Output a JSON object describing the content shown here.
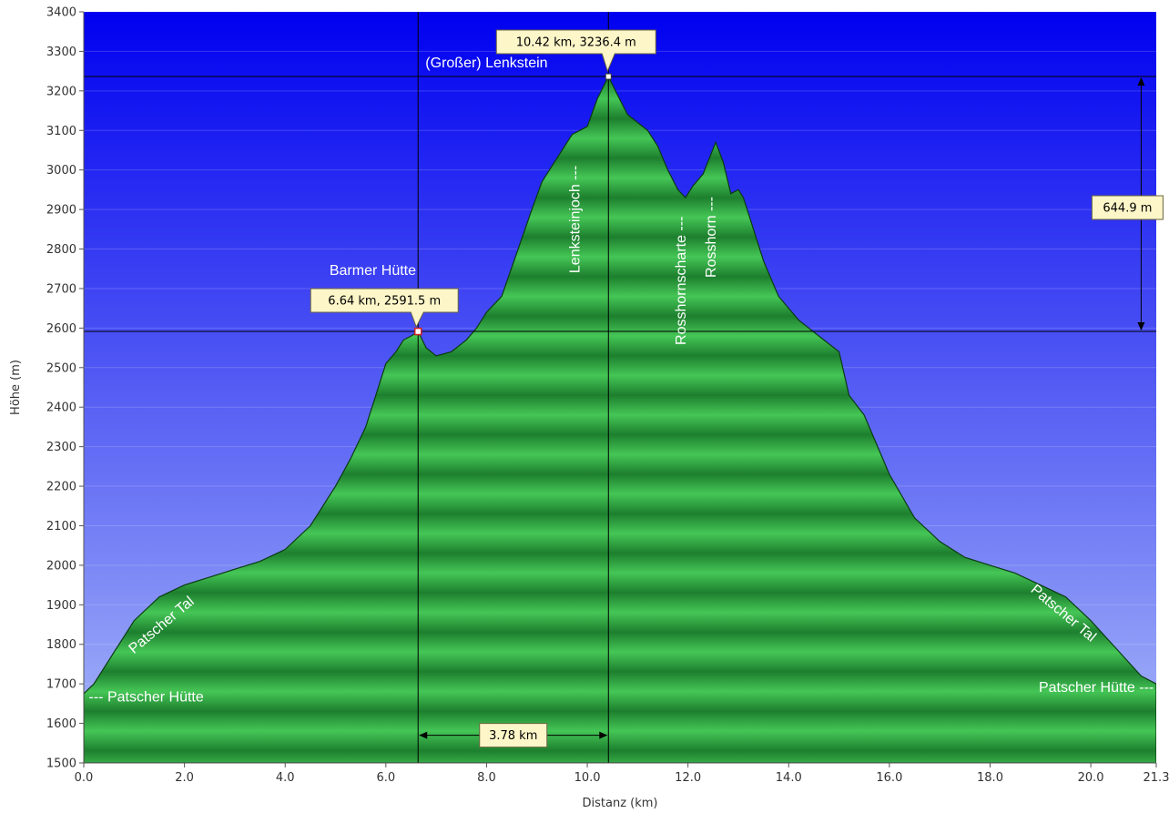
{
  "chart_data": {
    "type": "area",
    "xlabel": "Distanz  (km)",
    "ylabel": "Höhe (m)",
    "xlim": [
      0,
      21.3
    ],
    "ylim": [
      1500,
      3400
    ],
    "x_ticks": [
      {
        "value": 0,
        "label": "0.0"
      },
      {
        "value": 2,
        "label": "2.0"
      },
      {
        "value": 4,
        "label": "4.0"
      },
      {
        "value": 6,
        "label": "6.0"
      },
      {
        "value": 8,
        "label": "8.0"
      },
      {
        "value": 10,
        "label": "10.0"
      },
      {
        "value": 12,
        "label": "12.0"
      },
      {
        "value": 14,
        "label": "14.0"
      },
      {
        "value": 16,
        "label": "16.0"
      },
      {
        "value": 18,
        "label": "18.0"
      },
      {
        "value": 20,
        "label": "20.0"
      },
      {
        "value": 21.3,
        "label": "21.3"
      }
    ],
    "y_ticks": [
      {
        "value": 1500,
        "label": "1500"
      },
      {
        "value": 1600,
        "label": "1600"
      },
      {
        "value": 1700,
        "label": "1700"
      },
      {
        "value": 1800,
        "label": "1800"
      },
      {
        "value": 1900,
        "label": "1900"
      },
      {
        "value": 2000,
        "label": "2000"
      },
      {
        "value": 2100,
        "label": "2100"
      },
      {
        "value": 2200,
        "label": "2200"
      },
      {
        "value": 2300,
        "label": "2300"
      },
      {
        "value": 2400,
        "label": "2400"
      },
      {
        "value": 2500,
        "label": "2500"
      },
      {
        "value": 2600,
        "label": "2600"
      },
      {
        "value": 2700,
        "label": "2700"
      },
      {
        "value": 2800,
        "label": "2800"
      },
      {
        "value": 2900,
        "label": "2900"
      },
      {
        "value": 3000,
        "label": "3000"
      },
      {
        "value": 3100,
        "label": "3100"
      },
      {
        "value": 3200,
        "label": "3200"
      },
      {
        "value": 3300,
        "label": "3300"
      },
      {
        "value": 3400,
        "label": "3400"
      }
    ],
    "profile": {
      "x": [
        0.0,
        0.2,
        0.5,
        1.0,
        1.5,
        2.0,
        2.5,
        3.0,
        3.5,
        4.0,
        4.5,
        5.0,
        5.3,
        5.6,
        5.8,
        6.0,
        6.2,
        6.35,
        6.5,
        6.64,
        6.8,
        7.0,
        7.3,
        7.6,
        7.8,
        8.0,
        8.3,
        8.6,
        8.9,
        9.1,
        9.3,
        9.5,
        9.7,
        10.0,
        10.2,
        10.42,
        10.6,
        10.8,
        11.0,
        11.2,
        11.4,
        11.6,
        11.8,
        11.95,
        12.1,
        12.3,
        12.55,
        12.7,
        12.85,
        13.0,
        13.1,
        13.3,
        13.5,
        13.8,
        14.2,
        14.6,
        15.0,
        15.2,
        15.5,
        16.0,
        16.5,
        17.0,
        17.5,
        18.0,
        18.5,
        19.0,
        19.5,
        20.0,
        20.5,
        21.0,
        21.3
      ],
      "y": [
        1675,
        1700,
        1760,
        1860,
        1920,
        1950,
        1970,
        1990,
        2010,
        2040,
        2100,
        2200,
        2270,
        2350,
        2430,
        2510,
        2540,
        2570,
        2580,
        2591.5,
        2550,
        2530,
        2540,
        2570,
        2600,
        2640,
        2680,
        2790,
        2900,
        2970,
        3010,
        3050,
        3090,
        3110,
        3180,
        3236.4,
        3190,
        3140,
        3120,
        3100,
        3060,
        3000,
        2950,
        2930,
        2960,
        2990,
        3070,
        3020,
        2940,
        2950,
        2930,
        2850,
        2770,
        2680,
        2620,
        2580,
        2540,
        2430,
        2380,
        2230,
        2120,
        2060,
        2020,
        2000,
        1980,
        1950,
        1920,
        1860,
        1790,
        1720,
        1700
      ]
    },
    "waypoints": [
      {
        "label": "--- Patscher Hütte",
        "x": 0.1,
        "y": 1655,
        "rotate": 0,
        "anchor": "start"
      },
      {
        "label": "Patscher Tal",
        "x": 1.6,
        "y": 1840,
        "rotate": -40,
        "anchor": "middle"
      },
      {
        "label": "Barmer Hütte",
        "x": 6.6,
        "y": 2735,
        "rotate": 0,
        "anchor": "end"
      },
      {
        "label": "(Großer) Lenkstein",
        "x": 8.0,
        "y": 3260,
        "rotate": 0,
        "anchor": "middle"
      },
      {
        "label": "Lenksteinjoch ---",
        "x": 9.85,
        "y": 2875,
        "rotate": -90,
        "anchor": "middle"
      },
      {
        "label": "Rosshornscharte ---",
        "x": 11.95,
        "y": 2720,
        "rotate": -90,
        "anchor": "middle"
      },
      {
        "label": "Rosshorn ---",
        "x": 12.55,
        "y": 2830,
        "rotate": -90,
        "anchor": "middle"
      },
      {
        "label": "Patscher Tal",
        "x": 19.4,
        "y": 1870,
        "rotate": 40,
        "anchor": "middle"
      },
      {
        "label": "Patscher Hütte ---",
        "x": 21.25,
        "y": 1680,
        "rotate": 0,
        "anchor": "end"
      }
    ],
    "markers": [
      {
        "x": 6.64,
        "y": 2591.5,
        "label": "6.64 km, 2591.5 m"
      },
      {
        "x": 10.42,
        "y": 3236.4,
        "label": "10.42 km, 3236.4 m"
      }
    ],
    "measurements": {
      "distance_label": "3.78 km",
      "elevation_label": "644.9 m"
    },
    "colors": {
      "sky_top": "#0000f0",
      "sky_bottom": "#a8b8f8",
      "terrain_dark": "#1a7a2c",
      "terrain_light": "#3fbf50",
      "outline": "#0b3a12"
    }
  }
}
